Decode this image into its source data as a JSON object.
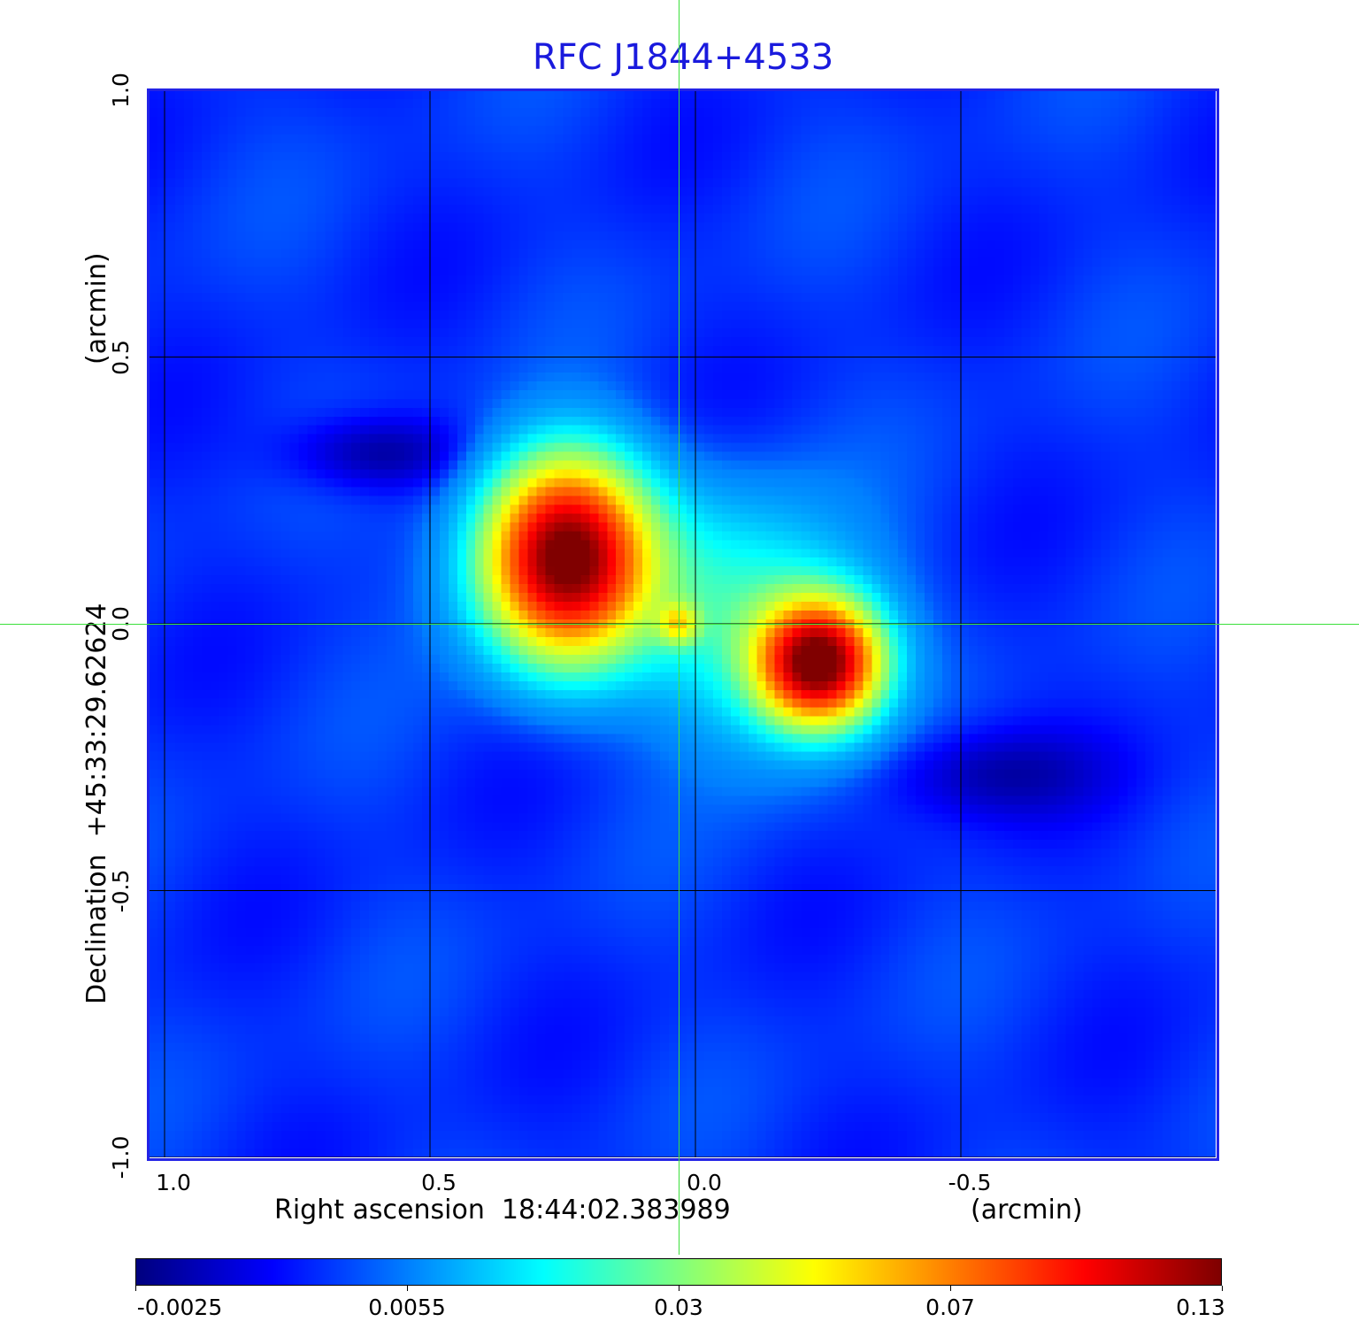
{
  "chart_data": {
    "type": "heatmap",
    "title": "RFC J1844+4533",
    "xlabel": "Right ascension  18:44:02.383989",
    "xunit": "(arcmin)",
    "ylabel": "Declination  +45:33:29.62624",
    "yunit": "(arcmin)",
    "xlim": [
      1.03,
      -0.98
    ],
    "ylim": [
      -1.0,
      1.0
    ],
    "x_ticks": [
      {
        "v": 1.0,
        "label": "1.0"
      },
      {
        "v": 0.5,
        "label": "0.5"
      },
      {
        "v": 0.0,
        "label": "0.0"
      },
      {
        "v": -0.5,
        "label": "-0.5"
      }
    ],
    "y_ticks": [
      {
        "v": 1.0,
        "label": "1.0"
      },
      {
        "v": 0.5,
        "label": "0.5"
      },
      {
        "v": 0.0,
        "label": "0.0"
      },
      {
        "v": -0.5,
        "label": "-0.5"
      },
      {
        "v": -1.0,
        "label": "-1.0"
      }
    ],
    "grid": true,
    "crosshair": {
      "x": 0.032,
      "y": 0.0
    },
    "colormap": "jet",
    "colorbar": {
      "ticks": [
        {
          "v": -0.0025,
          "label": "-0.0025"
        },
        {
          "v": 0.0055,
          "label": "0.0055"
        },
        {
          "v": 0.03,
          "label": "0.03"
        },
        {
          "v": 0.07,
          "label": "0.07"
        },
        {
          "v": 0.13,
          "label": "0.13"
        }
      ],
      "placement": "bottom"
    },
    "background_level": 0.003,
    "components": [
      {
        "name": "north-east lobe",
        "x": 0.243,
        "y": 0.128,
        "peak": 0.12,
        "sx": 0.09,
        "sy": 0.11
      },
      {
        "name": "south-west lobe",
        "x": -0.232,
        "y": -0.072,
        "peak": 0.13,
        "sx": 0.07,
        "sy": 0.07
      },
      {
        "name": "south-west diffuse",
        "x": -0.14,
        "y": -0.02,
        "peak": 0.02,
        "sx": 0.13,
        "sy": 0.14
      },
      {
        "name": "north-east diffuse",
        "x": 0.18,
        "y": 0.09,
        "peak": 0.02,
        "sx": 0.16,
        "sy": 0.12
      },
      {
        "name": "core",
        "x": 0.032,
        "y": 0.0,
        "peak": 0.035,
        "sx": 0.025,
        "sy": 0.025
      },
      {
        "name": "negative dip",
        "x": 0.6,
        "y": 0.32,
        "peak": -0.005,
        "sx": 0.12,
        "sy": 0.05
      },
      {
        "name": "negative dip",
        "x": -0.55,
        "y": -0.28,
        "peak": -0.004,
        "sx": 0.15,
        "sy": 0.06
      }
    ]
  }
}
